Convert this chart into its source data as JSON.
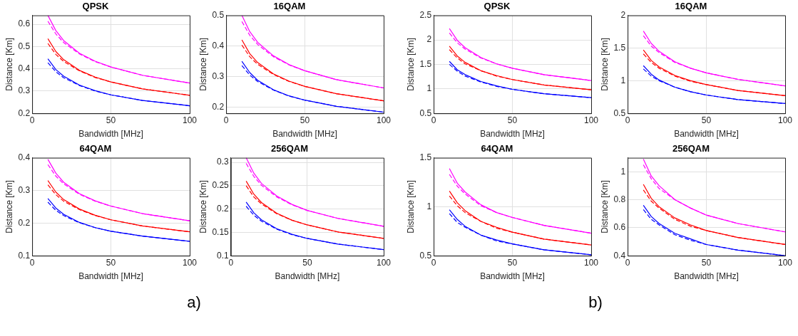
{
  "chart_data": [
    {
      "type": "line",
      "title": "QPSK",
      "xlabel": "Bandwidth [MHz]",
      "ylabel": "Distance [Km]",
      "x": [
        10,
        15,
        20,
        30,
        40,
        50,
        70,
        100
      ],
      "xlim": [
        0,
        100
      ],
      "xticks": [
        0,
        50,
        100
      ],
      "ylim": [
        0.2,
        0.64
      ],
      "yticks": [
        0.2,
        0.3,
        0.4,
        0.5,
        0.6
      ],
      "grid": true,
      "marker": "none",
      "annotations": [
        "a)"
      ],
      "series": [
        {
          "color": "#ff00ff",
          "line_style": "solid",
          "values": [
            0.64,
            0.572,
            0.527,
            0.47,
            0.434,
            0.408,
            0.371,
            0.336
          ]
        },
        {
          "color": "#ff00ff",
          "line_style": "dashed",
          "values": [
            0.614,
            0.557,
            0.518,
            0.467,
            0.432,
            0.408,
            0.371,
            0.336
          ]
        },
        {
          "color": "#ff0000",
          "line_style": "solid",
          "values": [
            0.535,
            0.478,
            0.441,
            0.393,
            0.363,
            0.341,
            0.31,
            0.281
          ]
        },
        {
          "color": "#ff0000",
          "line_style": "dashed",
          "values": [
            0.514,
            0.465,
            0.433,
            0.391,
            0.361,
            0.341,
            0.31,
            0.281
          ]
        },
        {
          "color": "#0000ff",
          "line_style": "solid",
          "values": [
            0.445,
            0.397,
            0.367,
            0.327,
            0.302,
            0.283,
            0.258,
            0.234
          ]
        },
        {
          "color": "#0000ff",
          "line_style": "dashed",
          "values": [
            0.427,
            0.387,
            0.36,
            0.325,
            0.3,
            0.283,
            0.258,
            0.234
          ]
        }
      ]
    },
    {
      "type": "line",
      "title": "16QAM",
      "xlabel": "Bandwidth [MHz]",
      "ylabel": "Distance [Km]",
      "x": [
        10,
        15,
        20,
        30,
        40,
        50,
        70,
        100
      ],
      "xlim": [
        0,
        100
      ],
      "xticks": [
        0,
        50,
        100
      ],
      "ylim": [
        0.18,
        0.5
      ],
      "yticks": [
        0.2,
        0.3,
        0.4,
        0.5
      ],
      "grid": true,
      "marker": "none",
      "series": [
        {
          "color": "#ff00ff",
          "line_style": "solid",
          "values": [
            0.5,
            0.447,
            0.412,
            0.368,
            0.339,
            0.319,
            0.29,
            0.263
          ]
        },
        {
          "color": "#ff00ff",
          "line_style": "dashed",
          "values": [
            0.48,
            0.435,
            0.405,
            0.365,
            0.338,
            0.319,
            0.29,
            0.263
          ]
        },
        {
          "color": "#ff0000",
          "line_style": "solid",
          "values": [
            0.42,
            0.375,
            0.346,
            0.309,
            0.285,
            0.268,
            0.244,
            0.221
          ]
        },
        {
          "color": "#ff0000",
          "line_style": "dashed",
          "values": [
            0.403,
            0.365,
            0.34,
            0.307,
            0.284,
            0.268,
            0.244,
            0.221
          ]
        },
        {
          "color": "#0000ff",
          "line_style": "solid",
          "values": [
            0.35,
            0.313,
            0.288,
            0.257,
            0.237,
            0.223,
            0.203,
            0.184
          ]
        },
        {
          "color": "#0000ff",
          "line_style": "dashed",
          "values": [
            0.336,
            0.305,
            0.284,
            0.256,
            0.236,
            0.223,
            0.203,
            0.184
          ]
        }
      ]
    },
    {
      "type": "line",
      "title": "64QAM",
      "xlabel": "Bandwidth [MHz]",
      "ylabel": "Distance [Km]",
      "x": [
        10,
        15,
        20,
        30,
        40,
        50,
        70,
        100
      ],
      "xlim": [
        0,
        100
      ],
      "xticks": [
        0,
        50,
        100
      ],
      "ylim": [
        0.1,
        0.4
      ],
      "yticks": [
        0.1,
        0.2,
        0.3,
        0.4
      ],
      "grid": true,
      "marker": "none",
      "series": [
        {
          "color": "#ff00ff",
          "line_style": "solid",
          "values": [
            0.395,
            0.353,
            0.325,
            0.29,
            0.268,
            0.252,
            0.229,
            0.207
          ]
        },
        {
          "color": "#ff00ff",
          "line_style": "dashed",
          "values": [
            0.379,
            0.344,
            0.32,
            0.288,
            0.267,
            0.252,
            0.229,
            0.207
          ]
        },
        {
          "color": "#ff0000",
          "line_style": "solid",
          "values": [
            0.33,
            0.295,
            0.272,
            0.243,
            0.224,
            0.21,
            0.191,
            0.173
          ]
        },
        {
          "color": "#ff0000",
          "line_style": "dashed",
          "values": [
            0.317,
            0.287,
            0.267,
            0.241,
            0.223,
            0.21,
            0.191,
            0.173
          ]
        },
        {
          "color": "#0000ff",
          "line_style": "solid",
          "values": [
            0.275,
            0.246,
            0.227,
            0.202,
            0.186,
            0.175,
            0.16,
            0.144
          ]
        },
        {
          "color": "#0000ff",
          "line_style": "dashed",
          "values": [
            0.264,
            0.239,
            0.223,
            0.201,
            0.186,
            0.175,
            0.16,
            0.144
          ]
        }
      ]
    },
    {
      "type": "line",
      "title": "256QAM",
      "xlabel": "Bandwidth [MHz]",
      "ylabel": "Distance [Km]",
      "x": [
        10,
        15,
        20,
        30,
        40,
        50,
        70,
        100
      ],
      "xlim": [
        0,
        100
      ],
      "xticks": [
        0,
        50,
        100
      ],
      "ylim": [
        0.1,
        0.31
      ],
      "yticks": [
        0.1,
        0.15,
        0.2,
        0.25,
        0.3
      ],
      "grid": true,
      "marker": "none",
      "series": [
        {
          "color": "#ff00ff",
          "line_style": "solid",
          "values": [
            0.31,
            0.277,
            0.255,
            0.228,
            0.21,
            0.197,
            0.18,
            0.163
          ]
        },
        {
          "color": "#ff00ff",
          "line_style": "dashed",
          "values": [
            0.298,
            0.27,
            0.251,
            0.226,
            0.209,
            0.197,
            0.18,
            0.163
          ]
        },
        {
          "color": "#ff0000",
          "line_style": "solid",
          "values": [
            0.26,
            0.232,
            0.214,
            0.191,
            0.176,
            0.166,
            0.151,
            0.137
          ]
        },
        {
          "color": "#ff0000",
          "line_style": "dashed",
          "values": [
            0.25,
            0.226,
            0.211,
            0.19,
            0.176,
            0.166,
            0.151,
            0.137
          ]
        },
        {
          "color": "#0000ff",
          "line_style": "solid",
          "values": [
            0.215,
            0.192,
            0.177,
            0.158,
            0.146,
            0.137,
            0.125,
            0.113
          ]
        },
        {
          "color": "#0000ff",
          "line_style": "dashed",
          "values": [
            0.206,
            0.187,
            0.174,
            0.157,
            0.145,
            0.137,
            0.125,
            0.113
          ]
        }
      ]
    },
    {
      "type": "line",
      "title": "QPSK",
      "xlabel": "Bandwidth [MHz]",
      "ylabel": "Distance [Km]",
      "x": [
        10,
        15,
        20,
        30,
        40,
        50,
        70,
        100
      ],
      "xlim": [
        0,
        100
      ],
      "xticks": [
        0,
        50,
        100
      ],
      "ylim": [
        0.5,
        2.5
      ],
      "yticks": [
        0.5,
        1,
        1.5,
        2,
        2.5
      ],
      "grid": true,
      "marker": "none",
      "annotations": [
        "b)"
      ],
      "series": [
        {
          "color": "#ff00ff",
          "line_style": "solid",
          "values": [
            2.23,
            1.99,
            1.84,
            1.64,
            1.51,
            1.42,
            1.29,
            1.17
          ]
        },
        {
          "color": "#ff00ff",
          "line_style": "dashed",
          "values": [
            2.14,
            1.94,
            1.81,
            1.63,
            1.51,
            1.42,
            1.29,
            1.17
          ]
        },
        {
          "color": "#ff0000",
          "line_style": "solid",
          "values": [
            1.87,
            1.67,
            1.54,
            1.37,
            1.27,
            1.19,
            1.08,
            0.98
          ]
        },
        {
          "color": "#ff0000",
          "line_style": "dashed",
          "values": [
            1.8,
            1.63,
            1.51,
            1.37,
            1.26,
            1.19,
            1.08,
            0.98
          ]
        },
        {
          "color": "#0000ff",
          "line_style": "solid",
          "values": [
            1.56,
            1.39,
            1.29,
            1.15,
            1.06,
            0.99,
            0.9,
            0.82
          ]
        },
        {
          "color": "#0000ff",
          "line_style": "dashed",
          "values": [
            1.5,
            1.36,
            1.26,
            1.14,
            1.05,
            0.99,
            0.9,
            0.82
          ]
        }
      ]
    },
    {
      "type": "line",
      "title": "16QAM",
      "xlabel": "Bandwidth [MHz]",
      "ylabel": "Distance [Km]",
      "x": [
        10,
        15,
        20,
        30,
        40,
        50,
        70,
        100
      ],
      "xlim": [
        0,
        100
      ],
      "xticks": [
        0,
        50,
        100
      ],
      "ylim": [
        0.5,
        2
      ],
      "yticks": [
        0.5,
        1,
        1.5,
        2
      ],
      "grid": true,
      "marker": "none",
      "series": [
        {
          "color": "#ff00ff",
          "line_style": "solid",
          "values": [
            1.76,
            1.57,
            1.45,
            1.29,
            1.19,
            1.12,
            1.02,
            0.92
          ]
        },
        {
          "color": "#ff00ff",
          "line_style": "dashed",
          "values": [
            1.69,
            1.53,
            1.43,
            1.28,
            1.19,
            1.12,
            1.02,
            0.92
          ]
        },
        {
          "color": "#ff0000",
          "line_style": "solid",
          "values": [
            1.47,
            1.31,
            1.21,
            1.08,
            1.0,
            0.94,
            0.85,
            0.77
          ]
        },
        {
          "color": "#ff0000",
          "line_style": "dashed",
          "values": [
            1.41,
            1.28,
            1.19,
            1.07,
            0.99,
            0.94,
            0.85,
            0.77
          ]
        },
        {
          "color": "#0000ff",
          "line_style": "solid",
          "values": [
            1.23,
            1.1,
            1.01,
            0.9,
            0.83,
            0.78,
            0.71,
            0.65
          ]
        },
        {
          "color": "#0000ff",
          "line_style": "dashed",
          "values": [
            1.18,
            1.07,
            1.0,
            0.9,
            0.83,
            0.78,
            0.71,
            0.65
          ]
        }
      ]
    },
    {
      "type": "line",
      "title": "64QAM",
      "xlabel": "Bandwidth [MHz]",
      "ylabel": "Distance [Km]",
      "x": [
        10,
        15,
        20,
        30,
        40,
        50,
        70,
        100
      ],
      "xlim": [
        0,
        100
      ],
      "xticks": [
        0,
        50,
        100
      ],
      "ylim": [
        0.5,
        1.5
      ],
      "yticks": [
        0.5,
        1,
        1.5
      ],
      "grid": true,
      "marker": "none",
      "series": [
        {
          "color": "#ff00ff",
          "line_style": "solid",
          "values": [
            1.39,
            1.24,
            1.15,
            1.02,
            0.94,
            0.89,
            0.81,
            0.73
          ]
        },
        {
          "color": "#ff00ff",
          "line_style": "dashed",
          "values": [
            1.33,
            1.21,
            1.13,
            1.01,
            0.94,
            0.89,
            0.81,
            0.73
          ]
        },
        {
          "color": "#ff0000",
          "line_style": "solid",
          "values": [
            1.16,
            1.04,
            0.96,
            0.85,
            0.79,
            0.74,
            0.67,
            0.61
          ]
        },
        {
          "color": "#ff0000",
          "line_style": "dashed",
          "values": [
            1.11,
            1.01,
            0.94,
            0.85,
            0.78,
            0.74,
            0.67,
            0.61
          ]
        },
        {
          "color": "#0000ff",
          "line_style": "solid",
          "values": [
            0.97,
            0.87,
            0.8,
            0.71,
            0.66,
            0.62,
            0.56,
            0.51
          ]
        },
        {
          "color": "#0000ff",
          "line_style": "dashed",
          "values": [
            0.93,
            0.84,
            0.79,
            0.71,
            0.65,
            0.62,
            0.56,
            0.51
          ]
        }
      ]
    },
    {
      "type": "line",
      "title": "256QAM",
      "xlabel": "Bandwidth [MHz]",
      "ylabel": "Distance [Km]",
      "x": [
        10,
        15,
        20,
        30,
        40,
        50,
        70,
        100
      ],
      "xlim": [
        0,
        100
      ],
      "xticks": [
        0,
        50,
        100
      ],
      "ylim": [
        0.4,
        1.1
      ],
      "yticks": [
        0.4,
        0.6,
        0.8,
        1
      ],
      "grid": true,
      "marker": "none",
      "series": [
        {
          "color": "#ff00ff",
          "line_style": "solid",
          "values": [
            1.09,
            0.97,
            0.9,
            0.8,
            0.74,
            0.69,
            0.63,
            0.57
          ]
        },
        {
          "color": "#ff00ff",
          "line_style": "dashed",
          "values": [
            1.05,
            0.95,
            0.88,
            0.8,
            0.74,
            0.69,
            0.63,
            0.57
          ]
        },
        {
          "color": "#ff0000",
          "line_style": "solid",
          "values": [
            0.91,
            0.81,
            0.75,
            0.67,
            0.62,
            0.58,
            0.53,
            0.48
          ]
        },
        {
          "color": "#ff0000",
          "line_style": "dashed",
          "values": [
            0.87,
            0.79,
            0.74,
            0.66,
            0.61,
            0.58,
            0.53,
            0.48
          ]
        },
        {
          "color": "#0000ff",
          "line_style": "solid",
          "values": [
            0.76,
            0.68,
            0.63,
            0.56,
            0.52,
            0.48,
            0.44,
            0.4
          ]
        },
        {
          "color": "#0000ff",
          "line_style": "dashed",
          "values": [
            0.73,
            0.66,
            0.62,
            0.55,
            0.51,
            0.48,
            0.44,
            0.4
          ]
        }
      ]
    }
  ]
}
